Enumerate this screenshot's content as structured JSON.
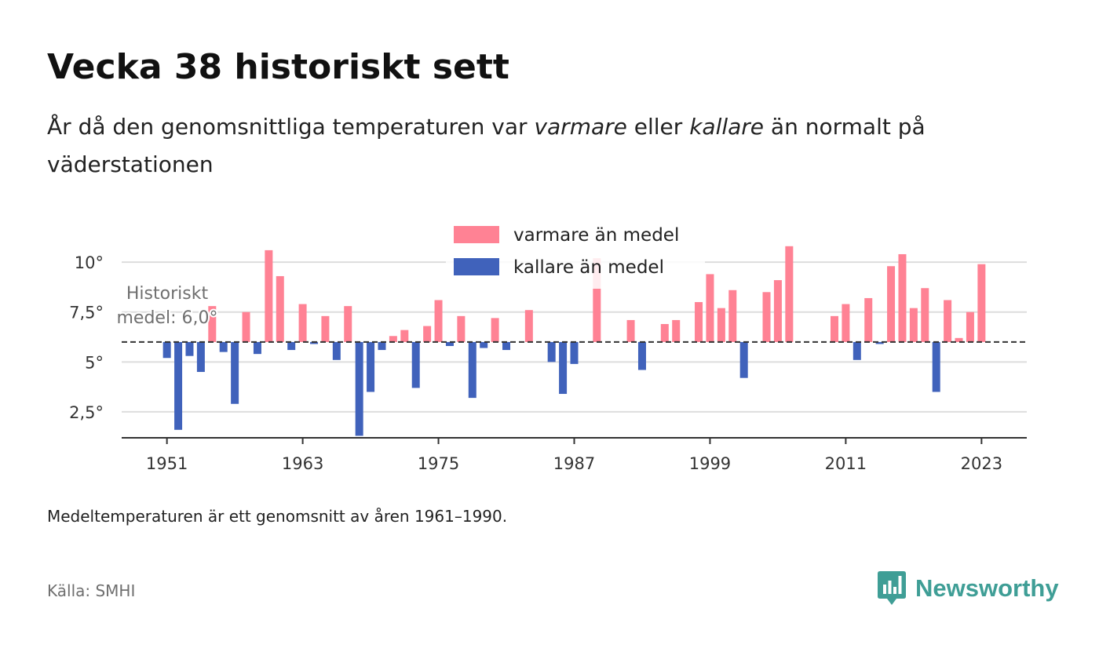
{
  "title": "Vecka 38 historiskt sett",
  "subtitle": {
    "part1": "År då den genomsnittliga temperaturen var ",
    "warm_word": "varmare",
    "part2": " eller ",
    "cold_word": "kallare",
    "part3": " än normalt på väderstationen"
  },
  "note": "Medeltemperaturen är ett genomsnitt av åren 1961–1990.",
  "source": "Källa: SMHI",
  "brand": "Newsworthy",
  "colors": {
    "warm": "#ff8294",
    "cold": "#4062bb",
    "grid": "#dddddd",
    "axis": "#333333",
    "baseline": "#333333",
    "brand": "#3f9e96"
  },
  "chart_data": {
    "type": "bar",
    "baseline": 6.0,
    "baseline_label_line1": "Historiskt",
    "baseline_label_line2": "medel: 6,0°",
    "legend": {
      "warm_label": "varmare än medel",
      "cold_label": "kallare än medel"
    },
    "y_ticks": [
      {
        "value": 2.5,
        "label": "2,5°"
      },
      {
        "value": 5,
        "label": "5°"
      },
      {
        "value": 7.5,
        "label": "7,5°"
      },
      {
        "value": 10,
        "label": "10°"
      }
    ],
    "x_ticks": [
      {
        "value": 1951,
        "label": "1951"
      },
      {
        "value": 1963,
        "label": "1963"
      },
      {
        "value": 1975,
        "label": "1975"
      },
      {
        "value": 1987,
        "label": "1987"
      },
      {
        "value": 1999,
        "label": "1999"
      },
      {
        "value": 2011,
        "label": "2011"
      },
      {
        "value": 2023,
        "label": "2023"
      }
    ],
    "xlim": [
      1947,
      2027
    ],
    "ylim": [
      1.2,
      11.5
    ],
    "data": [
      {
        "year": 1951,
        "value": 5.2
      },
      {
        "year": 1952,
        "value": 1.6
      },
      {
        "year": 1953,
        "value": 5.3
      },
      {
        "year": 1954,
        "value": 4.5
      },
      {
        "year": 1955,
        "value": 7.8
      },
      {
        "year": 1956,
        "value": 5.5
      },
      {
        "year": 1957,
        "value": 2.9
      },
      {
        "year": 1958,
        "value": 7.5
      },
      {
        "year": 1959,
        "value": 5.4
      },
      {
        "year": 1960,
        "value": 10.6
      },
      {
        "year": 1961,
        "value": 9.3
      },
      {
        "year": 1962,
        "value": 5.6
      },
      {
        "year": 1963,
        "value": 7.9
      },
      {
        "year": 1964,
        "value": 5.9
      },
      {
        "year": 1965,
        "value": 7.3
      },
      {
        "year": 1966,
        "value": 5.1
      },
      {
        "year": 1967,
        "value": 7.8
      },
      {
        "year": 1968,
        "value": 1.3
      },
      {
        "year": 1969,
        "value": 3.5
      },
      {
        "year": 1970,
        "value": 5.6
      },
      {
        "year": 1971,
        "value": 6.3
      },
      {
        "year": 1972,
        "value": 6.6
      },
      {
        "year": 1973,
        "value": 3.7
      },
      {
        "year": 1974,
        "value": 6.8
      },
      {
        "year": 1975,
        "value": 8.1
      },
      {
        "year": 1976,
        "value": 5.8
      },
      {
        "year": 1977,
        "value": 7.3
      },
      {
        "year": 1978,
        "value": 3.2
      },
      {
        "year": 1979,
        "value": 5.7
      },
      {
        "year": 1980,
        "value": 7.2
      },
      {
        "year": 1981,
        "value": 5.6
      },
      {
        "year": 1983,
        "value": 7.6
      },
      {
        "year": 1985,
        "value": 5.0
      },
      {
        "year": 1986,
        "value": 3.4
      },
      {
        "year": 1987,
        "value": 4.9
      },
      {
        "year": 1989,
        "value": 10.2
      },
      {
        "year": 1992,
        "value": 7.1
      },
      {
        "year": 1993,
        "value": 4.6
      },
      {
        "year": 1995,
        "value": 6.9
      },
      {
        "year": 1996,
        "value": 7.1
      },
      {
        "year": 1998,
        "value": 8.0
      },
      {
        "year": 1999,
        "value": 9.4
      },
      {
        "year": 2000,
        "value": 7.7
      },
      {
        "year": 2001,
        "value": 8.6
      },
      {
        "year": 2002,
        "value": 4.2
      },
      {
        "year": 2004,
        "value": 8.5
      },
      {
        "year": 2005,
        "value": 9.1
      },
      {
        "year": 2006,
        "value": 10.8
      },
      {
        "year": 2010,
        "value": 7.3
      },
      {
        "year": 2011,
        "value": 7.9
      },
      {
        "year": 2012,
        "value": 5.1
      },
      {
        "year": 2013,
        "value": 8.2
      },
      {
        "year": 2014,
        "value": 5.9
      },
      {
        "year": 2015,
        "value": 9.8
      },
      {
        "year": 2016,
        "value": 10.4
      },
      {
        "year": 2017,
        "value": 7.7
      },
      {
        "year": 2018,
        "value": 8.7
      },
      {
        "year": 2019,
        "value": 3.5
      },
      {
        "year": 2020,
        "value": 8.1
      },
      {
        "year": 2021,
        "value": 6.2
      },
      {
        "year": 2022,
        "value": 7.5
      },
      {
        "year": 2023,
        "value": 9.9
      }
    ]
  }
}
